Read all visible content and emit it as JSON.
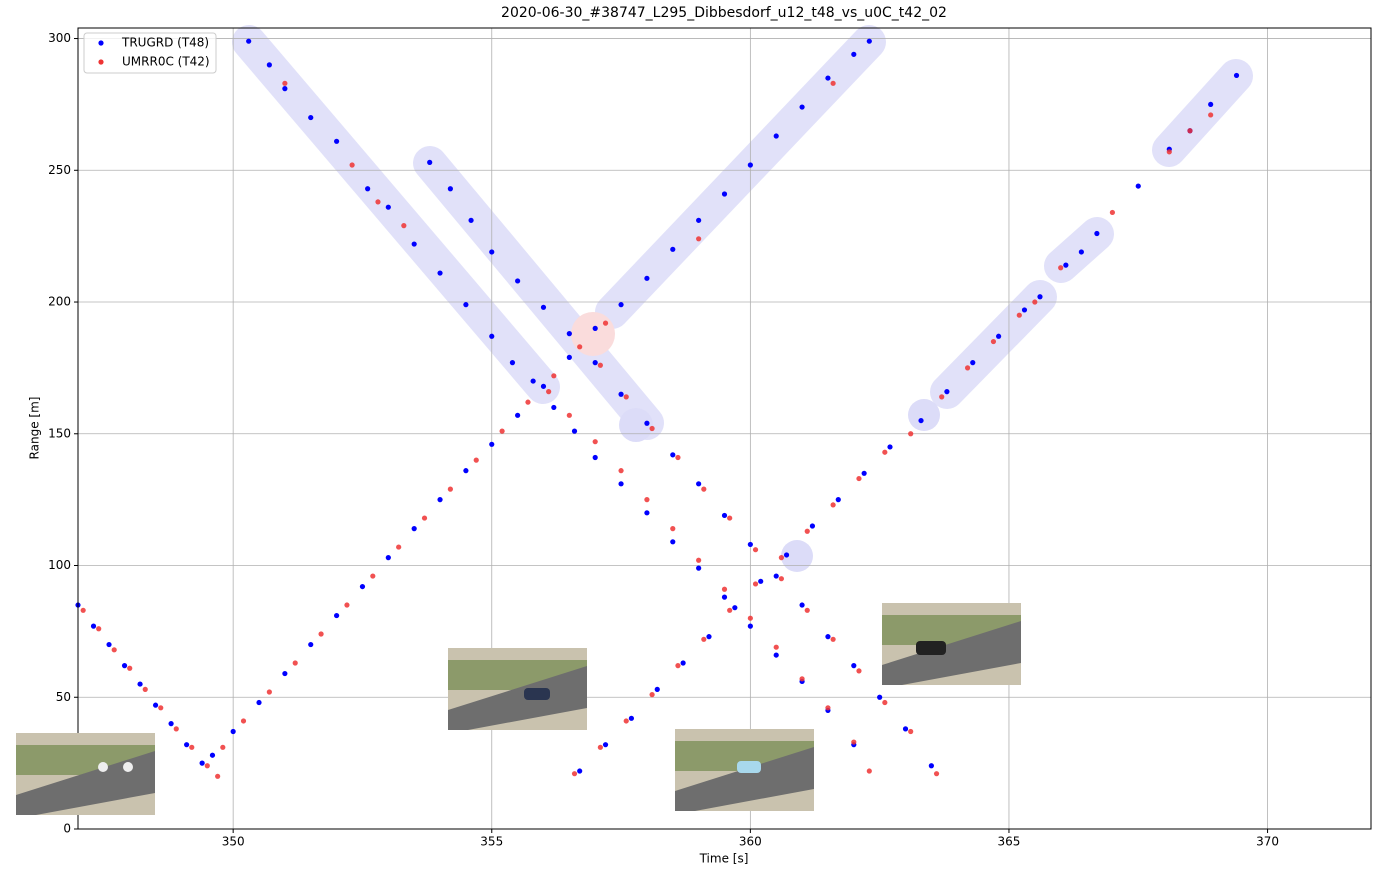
{
  "chart_data": {
    "type": "scatter",
    "title": "2020-06-30_#38747_L295_Dibbesdorf_u12_t48_vs_u0C_t42_02",
    "x_label": "Time [s]",
    "y_label": "Range [m]",
    "xlim": [
      347,
      372
    ],
    "ylim": [
      0,
      304
    ],
    "xticks": [
      350,
      355,
      360,
      365,
      370
    ],
    "yticks": [
      0,
      50,
      100,
      150,
      200,
      250,
      300
    ],
    "grid": true,
    "legend": "upper left",
    "series": [
      {
        "name": "TRUGRD (T48)",
        "color": "#0000ff",
        "x": [
          347.0,
          347.3,
          347.6,
          347.9,
          348.2,
          348.5,
          348.8,
          349.1,
          349.4,
          349.6,
          350.0,
          350.5,
          351.0,
          351.5,
          352.0,
          352.5,
          353.0,
          353.5,
          354.0,
          354.5,
          355.0,
          355.5,
          356.0,
          356.5,
          357.0,
          357.5,
          358.0,
          358.5,
          359.0,
          359.5,
          360.0,
          360.5,
          361.0,
          361.5,
          362.0,
          362.3,
          350.3,
          350.7,
          351.0,
          351.5,
          352.0,
          352.6,
          353.0,
          353.5,
          354.0,
          354.5,
          355.0,
          355.4,
          355.8,
          356.2,
          356.6,
          357.0,
          357.5,
          358.0,
          358.5,
          359.0,
          359.5,
          360.0,
          360.5,
          361.0,
          361.5,
          362.0,
          353.8,
          354.2,
          354.6,
          355.0,
          355.5,
          356.0,
          356.5,
          357.0,
          357.5,
          358.0,
          358.5,
          359.0,
          359.5,
          360.0,
          360.5,
          361.0,
          361.5,
          362.0,
          362.5,
          363.0,
          363.5,
          356.7,
          357.2,
          357.7,
          358.2,
          358.7,
          359.2,
          359.7,
          360.2,
          360.7,
          361.2,
          361.7,
          362.2,
          362.7,
          363.3,
          363.8,
          364.3,
          364.8,
          365.3,
          365.6,
          366.1,
          366.4,
          366.7,
          367.5,
          368.1,
          368.5,
          368.9,
          369.4
        ],
        "y": [
          85,
          77,
          70,
          62,
          55,
          47,
          40,
          32,
          25,
          28,
          37,
          48,
          59,
          70,
          81,
          92,
          103,
          114,
          125,
          136,
          146,
          157,
          168,
          179,
          190,
          199,
          209,
          220,
          231,
          241,
          252,
          263,
          274,
          285,
          294,
          299,
          299,
          290,
          281,
          270,
          261,
          243,
          236,
          222,
          211,
          199,
          187,
          177,
          170,
          160,
          151,
          141,
          131,
          120,
          109,
          99,
          88,
          77,
          66,
          56,
          45,
          32,
          253,
          243,
          231,
          219,
          208,
          198,
          188,
          177,
          165,
          154,
          142,
          131,
          119,
          108,
          96,
          85,
          73,
          62,
          50,
          38,
          24,
          22,
          32,
          42,
          53,
          63,
          73,
          84,
          94,
          104,
          115,
          125,
          135,
          145,
          155,
          166,
          177,
          187,
          197,
          202,
          214,
          219,
          226,
          244,
          258,
          265,
          275,
          286
        ]
      },
      {
        "name": "UMRR0C (T42)",
        "color": "#ee3333",
        "x": [
          347.1,
          347.4,
          347.7,
          348.0,
          348.3,
          348.6,
          348.9,
          349.2,
          349.5,
          349.7,
          349.8,
          350.2,
          350.7,
          351.2,
          351.7,
          352.2,
          352.7,
          353.2,
          353.7,
          354.2,
          354.7,
          355.2,
          355.7,
          356.2,
          356.7,
          357.2,
          359.0,
          361.6,
          351.0,
          352.3,
          352.8,
          353.3,
          356.1,
          356.5,
          357.0,
          357.5,
          358.0,
          358.5,
          359.0,
          359.5,
          360.0,
          360.5,
          361.0,
          361.5,
          362.0,
          362.3,
          357.1,
          357.6,
          358.1,
          358.6,
          359.1,
          359.6,
          360.1,
          360.6,
          361.1,
          361.6,
          362.1,
          362.6,
          363.1,
          363.6,
          356.6,
          357.1,
          357.6,
          358.1,
          358.6,
          359.1,
          359.6,
          360.1,
          360.6,
          361.1,
          361.6,
          362.1,
          362.6,
          363.1,
          363.7,
          364.2,
          364.7,
          365.2,
          365.5,
          366.0,
          367.0,
          368.1,
          368.5,
          368.9
        ],
        "y": [
          83,
          76,
          68,
          61,
          53,
          46,
          38,
          31,
          24,
          20,
          31,
          41,
          52,
          63,
          74,
          85,
          96,
          107,
          118,
          129,
          140,
          151,
          162,
          172,
          183,
          192,
          224,
          283,
          283,
          252,
          238,
          229,
          166,
          157,
          147,
          136,
          125,
          114,
          102,
          91,
          80,
          69,
          57,
          46,
          33,
          22,
          176,
          164,
          152,
          141,
          129,
          118,
          106,
          95,
          83,
          72,
          60,
          48,
          37,
          21,
          21,
          31,
          41,
          51,
          62,
          72,
          83,
          93,
          103,
          113,
          123,
          133,
          143,
          150,
          164,
          175,
          185,
          195,
          200,
          213,
          234,
          257,
          265,
          271
        ]
      }
    ]
  }
}
